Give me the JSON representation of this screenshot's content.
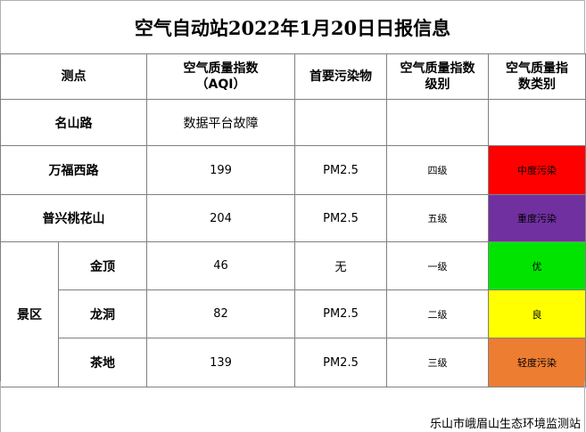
{
  "title": "空气自动站2022年1月20日日报信息",
  "headers": {
    "station": "测点",
    "aqi_line1": "空气质量指数",
    "aqi_line2": "（AQI）",
    "pollutant": "首要污染物",
    "level_line1": "空气质量指数",
    "level_line2": "级别",
    "category_line1": "空气质量指",
    "category_line2": "数类别"
  },
  "rows": {
    "mingshan": {
      "name": "名山路",
      "status": "数据平台故障"
    },
    "wanfu": {
      "name": "万福西路",
      "aqi": "199",
      "pollutant": "PM2.5",
      "level": "四级",
      "category": "中度污染",
      "color": "#ff0000"
    },
    "puxing": {
      "name": "普兴桃花山",
      "aqi": "204",
      "pollutant": "PM2.5",
      "level": "五级",
      "category": "重度污染",
      "color": "#7030a0"
    },
    "scenic_group": "景区",
    "jinding": {
      "name": "金顶",
      "aqi": "46",
      "pollutant": "无",
      "level": "一级",
      "category": "优",
      "color": "#00e400"
    },
    "longdong": {
      "name": "龙洞",
      "aqi": "82",
      "pollutant": "PM2.5",
      "level": "二级",
      "category": "良",
      "color": "#ffff00"
    },
    "chadi": {
      "name": "茶地",
      "aqi": "139",
      "pollutant": "PM2.5",
      "level": "三级",
      "category": "轻度污染",
      "color": "#ed7d31"
    }
  },
  "footer": "乐山市峨眉山生态环境监测站"
}
